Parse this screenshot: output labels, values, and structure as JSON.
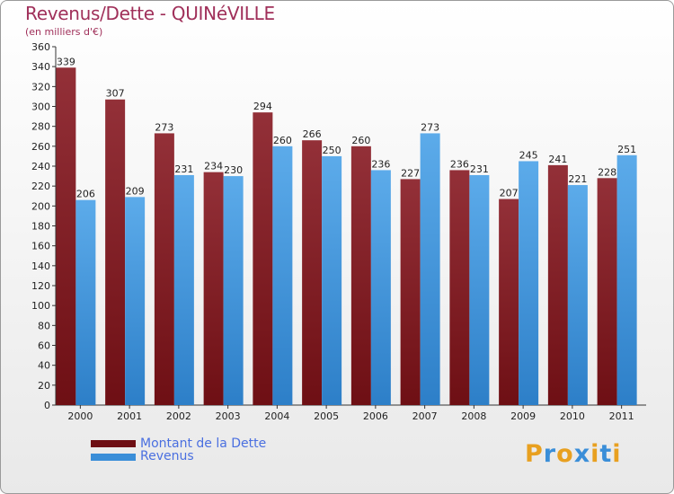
{
  "title": "Revenus/Dette - QUINéVILLE",
  "subtitle": "(en milliers d'€)",
  "colors": {
    "dette": "#6e0f14",
    "revenus": "#3a8ed8",
    "title": "#a0305a",
    "legend_text": "#4a6fe0"
  },
  "chart_data": {
    "type": "bar",
    "title": "Revenus/Dette - QUINéVILLE",
    "subtitle": "(en milliers d'€)",
    "categories": [
      "2000",
      "2001",
      "2002",
      "2003",
      "2004",
      "2005",
      "2006",
      "2007",
      "2008",
      "2009",
      "2010",
      "2011"
    ],
    "series": [
      {
        "name": "Montant de la Dette",
        "values": [
          339,
          307,
          273,
          234,
          294,
          266,
          260,
          227,
          236,
          207,
          241,
          228
        ]
      },
      {
        "name": "Revenus",
        "values": [
          206,
          209,
          231,
          230,
          260,
          250,
          236,
          273,
          231,
          245,
          221,
          251
        ]
      }
    ],
    "ylim": [
      0,
      360
    ],
    "yticks": [
      0,
      20,
      40,
      60,
      80,
      100,
      120,
      140,
      160,
      180,
      200,
      220,
      240,
      260,
      280,
      300,
      320,
      340,
      360
    ],
    "grid": false,
    "legend": "bottom-left"
  },
  "legend": {
    "dette_label": "Montant de la Dette",
    "revenus_label": "Revenus"
  },
  "logo": {
    "letters": [
      "P",
      "r",
      "o",
      "x",
      "i",
      "t",
      "i"
    ],
    "colors": [
      "#e8a020",
      "#3a8ed8",
      "#e8a020",
      "#3a8ed8",
      "#e8a020",
      "#3a8ed8",
      "#e8a020"
    ]
  }
}
